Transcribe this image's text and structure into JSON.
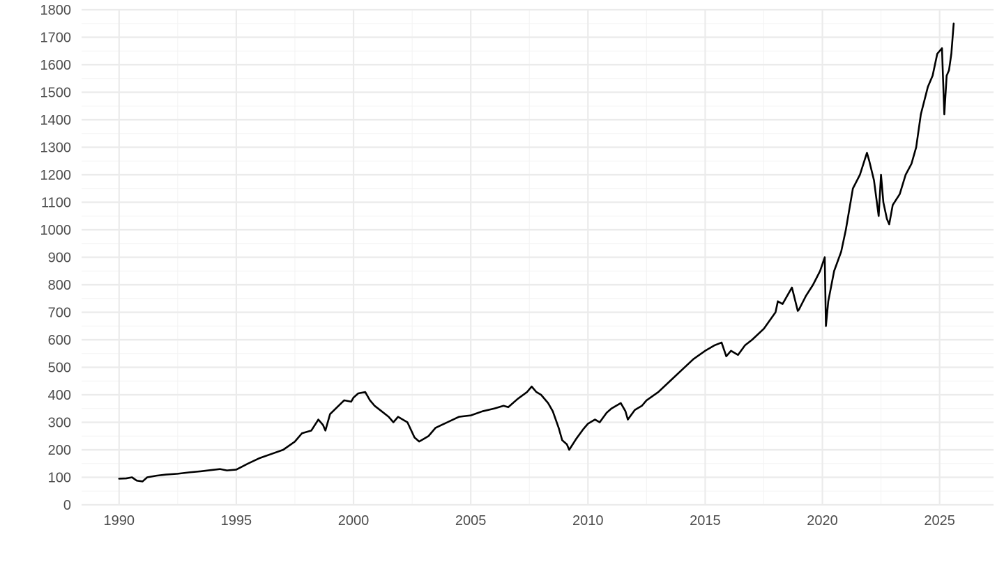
{
  "chart_data": {
    "type": "line",
    "title": "",
    "xlabel": "",
    "ylabel": "",
    "xlim": [
      1988.4,
      2027.3
    ],
    "ylim": [
      0,
      1800
    ],
    "x_ticks": [
      1990,
      1995,
      2000,
      2005,
      2010,
      2015,
      2020,
      2025
    ],
    "x_tick_labels": [
      "1990",
      "1995",
      "2000",
      "2005",
      "2010",
      "2015",
      "2020",
      "2025"
    ],
    "y_ticks": [
      0,
      100,
      200,
      300,
      400,
      500,
      600,
      700,
      800,
      900,
      1000,
      1100,
      1200,
      1300,
      1400,
      1500,
      1600,
      1700,
      1800
    ],
    "y_tick_labels": [
      "0",
      "100",
      "200",
      "300",
      "400",
      "500",
      "600",
      "700",
      "800",
      "900",
      "1000",
      "1100",
      "1200",
      "1300",
      "1400",
      "1500",
      "1600",
      "1700",
      "1800"
    ],
    "grid": true,
    "legend": "none",
    "series": [
      {
        "color": "#000000",
        "x": [
          1990.0,
          1990.3,
          1990.55,
          1990.75,
          1991.0,
          1991.2,
          1991.6,
          1992.0,
          1992.5,
          1993.0,
          1993.5,
          1994.0,
          1994.3,
          1994.6,
          1995.0,
          1995.5,
          1996.0,
          1996.5,
          1997.0,
          1997.5,
          1997.8,
          1998.2,
          1998.5,
          1998.7,
          1998.8,
          1999.0,
          1999.3,
          1999.6,
          1999.9,
          2000.0,
          2000.2,
          2000.5,
          2000.7,
          2000.9,
          2001.2,
          2001.5,
          2001.7,
          2001.9,
          2002.3,
          2002.6,
          2002.8,
          2003.0,
          2003.2,
          2003.5,
          2004.0,
          2004.5,
          2005.0,
          2005.5,
          2006.0,
          2006.4,
          2006.6,
          2007.0,
          2007.4,
          2007.6,
          2007.8,
          2008.0,
          2008.3,
          2008.5,
          2008.75,
          2008.9,
          2009.1,
          2009.2,
          2009.5,
          2009.8,
          2010.0,
          2010.3,
          2010.5,
          2010.8,
          2011.0,
          2011.4,
          2011.6,
          2011.7,
          2012.0,
          2012.3,
          2012.5,
          2013.0,
          2013.5,
          2014.0,
          2014.5,
          2015.0,
          2015.4,
          2015.7,
          2015.9,
          2016.1,
          2016.4,
          2016.7,
          2017.0,
          2017.5,
          2018.0,
          2018.1,
          2018.3,
          2018.7,
          2018.95,
          2019.0,
          2019.3,
          2019.6,
          2019.9,
          2020.1,
          2020.15,
          2020.25,
          2020.5,
          2020.8,
          2021.0,
          2021.3,
          2021.6,
          2021.9,
          2022.0,
          2022.2,
          2022.4,
          2022.5,
          2022.6,
          2022.75,
          2022.85,
          2023.0,
          2023.3,
          2023.55,
          2023.8,
          2024.0,
          2024.2,
          2024.5,
          2024.7,
          2024.9,
          2025.1,
          2025.2,
          2025.3,
          2025.4,
          2025.5,
          2025.6
        ],
        "y": [
          95,
          96,
          100,
          88,
          85,
          100,
          106,
          110,
          113,
          118,
          122,
          127,
          130,
          125,
          128,
          150,
          170,
          185,
          200,
          230,
          260,
          270,
          310,
          290,
          270,
          330,
          355,
          380,
          375,
          390,
          405,
          410,
          380,
          360,
          340,
          320,
          300,
          320,
          300,
          245,
          230,
          240,
          250,
          280,
          300,
          320,
          325,
          340,
          350,
          360,
          355,
          385,
          410,
          430,
          410,
          400,
          370,
          340,
          280,
          235,
          220,
          200,
          240,
          275,
          295,
          310,
          300,
          335,
          350,
          370,
          340,
          310,
          345,
          360,
          380,
          410,
          450,
          490,
          530,
          560,
          580,
          590,
          540,
          560,
          545,
          580,
          600,
          640,
          700,
          740,
          730,
          790,
          705,
          710,
          760,
          800,
          850,
          900,
          650,
          740,
          850,
          920,
          1000,
          1150,
          1200,
          1280,
          1250,
          1180,
          1050,
          1200,
          1100,
          1040,
          1020,
          1090,
          1130,
          1200,
          1240,
          1300,
          1420,
          1520,
          1560,
          1640,
          1660,
          1420,
          1560,
          1580,
          1640,
          1750
        ]
      }
    ]
  }
}
